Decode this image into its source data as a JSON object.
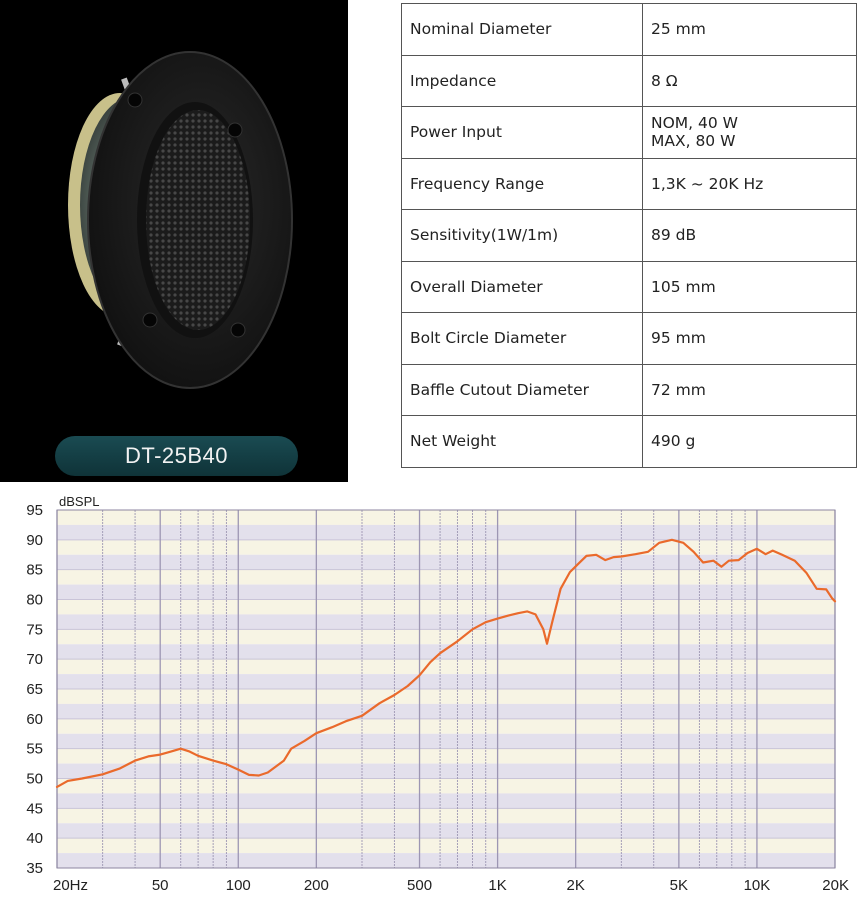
{
  "product": {
    "model": "DT-25B40"
  },
  "specs": [
    {
      "label": "Nominal Diameter",
      "value": [
        "25 mm"
      ]
    },
    {
      "label": "Impedance",
      "value": [
        "8 Ω"
      ]
    },
    {
      "label": "Power Input",
      "value": [
        "NOM, 40 W",
        "MAX, 80 W"
      ]
    },
    {
      "label": "Frequency Range",
      "value": [
        "1,3K ~ 20K Hz"
      ]
    },
    {
      "label": "Sensitivity(1W/1m)",
      "value": [
        "89 dB"
      ]
    },
    {
      "label": "Overall Diameter",
      "value": [
        "105 mm"
      ]
    },
    {
      "label": "Bolt Circle Diameter",
      "value": [
        "95 mm"
      ]
    },
    {
      "label": "Baffle Cutout Diameter",
      "value": [
        "72 mm"
      ]
    },
    {
      "label": "Net Weight",
      "value": [
        "490 g"
      ]
    }
  ],
  "chart_data": {
    "type": "line",
    "ylabel": "dBSPL",
    "xlabel": "",
    "x_scale": "log",
    "xlim": [
      20,
      20000
    ],
    "ylim": [
      35,
      95
    ],
    "y_ticks": [
      95,
      90,
      85,
      80,
      75,
      70,
      65,
      60,
      55,
      50,
      45,
      40,
      35
    ],
    "x_ticks": [
      {
        "value": 20,
        "label": "20Hz"
      },
      {
        "value": 50,
        "label": "50"
      },
      {
        "value": 100,
        "label": "100"
      },
      {
        "value": 200,
        "label": "200"
      },
      {
        "value": 500,
        "label": "500"
      },
      {
        "value": 1000,
        "label": "1K"
      },
      {
        "value": 2000,
        "label": "2K"
      },
      {
        "value": 5000,
        "label": "5K"
      },
      {
        "value": 10000,
        "label": "10K"
      },
      {
        "value": 20000,
        "label": "20K"
      }
    ],
    "grid": true,
    "line_color": "#ea6a2b",
    "series": [
      {
        "values": [
          {
            "x": 20,
            "y": 48.6
          },
          {
            "x": 22,
            "y": 49.6
          },
          {
            "x": 25,
            "y": 50.0
          },
          {
            "x": 30,
            "y": 50.7
          },
          {
            "x": 35,
            "y": 51.7
          },
          {
            "x": 40,
            "y": 53.0
          },
          {
            "x": 45,
            "y": 53.7
          },
          {
            "x": 50,
            "y": 54.0
          },
          {
            "x": 55,
            "y": 54.5
          },
          {
            "x": 60,
            "y": 55.0
          },
          {
            "x": 65,
            "y": 54.5
          },
          {
            "x": 70,
            "y": 53.8
          },
          {
            "x": 80,
            "y": 53.0
          },
          {
            "x": 90,
            "y": 52.4
          },
          {
            "x": 100,
            "y": 51.5
          },
          {
            "x": 110,
            "y": 50.6
          },
          {
            "x": 120,
            "y": 50.5
          },
          {
            "x": 130,
            "y": 51.0
          },
          {
            "x": 150,
            "y": 53.0
          },
          {
            "x": 160,
            "y": 55.0
          },
          {
            "x": 180,
            "y": 56.3
          },
          {
            "x": 200,
            "y": 57.6
          },
          {
            "x": 230,
            "y": 58.6
          },
          {
            "x": 260,
            "y": 59.6
          },
          {
            "x": 300,
            "y": 60.5
          },
          {
            "x": 350,
            "y": 62.6
          },
          {
            "x": 400,
            "y": 64.0
          },
          {
            "x": 450,
            "y": 65.5
          },
          {
            "x": 500,
            "y": 67.3
          },
          {
            "x": 550,
            "y": 69.5
          },
          {
            "x": 600,
            "y": 71.0
          },
          {
            "x": 700,
            "y": 73.0
          },
          {
            "x": 800,
            "y": 75.0
          },
          {
            "x": 900,
            "y": 76.2
          },
          {
            "x": 1000,
            "y": 76.8
          },
          {
            "x": 1100,
            "y": 77.3
          },
          {
            "x": 1200,
            "y": 77.7
          },
          {
            "x": 1300,
            "y": 78.0
          },
          {
            "x": 1400,
            "y": 77.5
          },
          {
            "x": 1500,
            "y": 75.0
          },
          {
            "x": 1550,
            "y": 72.6
          },
          {
            "x": 1620,
            "y": 76.0
          },
          {
            "x": 1750,
            "y": 81.8
          },
          {
            "x": 1900,
            "y": 84.6
          },
          {
            "x": 2050,
            "y": 86.0
          },
          {
            "x": 2200,
            "y": 87.3
          },
          {
            "x": 2400,
            "y": 87.5
          },
          {
            "x": 2600,
            "y": 86.6
          },
          {
            "x": 2800,
            "y": 87.1
          },
          {
            "x": 3000,
            "y": 87.2
          },
          {
            "x": 3400,
            "y": 87.6
          },
          {
            "x": 3800,
            "y": 88.0
          },
          {
            "x": 4200,
            "y": 89.5
          },
          {
            "x": 4700,
            "y": 90.0
          },
          {
            "x": 5200,
            "y": 89.5
          },
          {
            "x": 5700,
            "y": 88.0
          },
          {
            "x": 6200,
            "y": 86.2
          },
          {
            "x": 6800,
            "y": 86.5
          },
          {
            "x": 7300,
            "y": 85.5
          },
          {
            "x": 7800,
            "y": 86.5
          },
          {
            "x": 8500,
            "y": 86.6
          },
          {
            "x": 9200,
            "y": 87.8
          },
          {
            "x": 10000,
            "y": 88.5
          },
          {
            "x": 10800,
            "y": 87.6
          },
          {
            "x": 11500,
            "y": 88.2
          },
          {
            "x": 12500,
            "y": 87.5
          },
          {
            "x": 14000,
            "y": 86.5
          },
          {
            "x": 15500,
            "y": 84.5
          },
          {
            "x": 17000,
            "y": 81.8
          },
          {
            "x": 18500,
            "y": 81.7
          },
          {
            "x": 19500,
            "y": 80.2
          },
          {
            "x": 20000,
            "y": 79.7
          }
        ]
      }
    ]
  },
  "colors": {
    "page_bg": "#ffffff",
    "product_bg": "#000000",
    "badge_bg": "#154047",
    "plot_band_light": "#f7f4e4",
    "plot_band_dark": "#e3e0ec",
    "grid_line": "#9d96b3",
    "curve": "#ea6a2b"
  }
}
